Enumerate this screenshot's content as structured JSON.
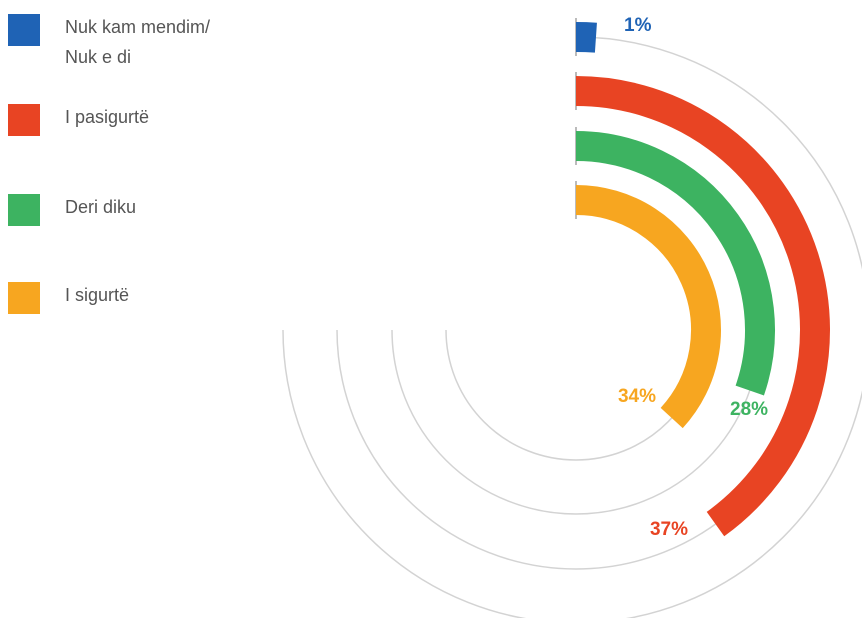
{
  "chart_data": {
    "type": "radialbar",
    "categories": [
      "Nuk kam mendim/ Nuk e di",
      "I pasigurtë",
      "Deri diku",
      "I sigurtë"
    ],
    "values": [
      1,
      37,
      28,
      34
    ],
    "value_labels": [
      "1%",
      "37%",
      "28%",
      "34%"
    ],
    "colors": [
      "#1f63b5",
      "#e84423",
      "#3db361",
      "#f7a620"
    ]
  }
}
